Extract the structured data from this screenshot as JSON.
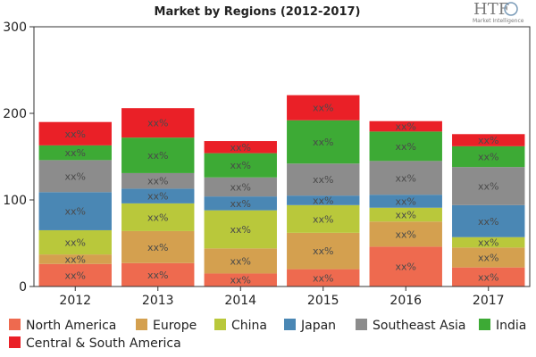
{
  "chart_data": {
    "type": "bar",
    "stacked": true,
    "title": "Market by Regions (2012-2017)",
    "categories": [
      "2012",
      "2013",
      "2014",
      "2015",
      "2016",
      "2017"
    ],
    "ylim": [
      0,
      300
    ],
    "yticks": [
      0,
      100,
      200,
      300
    ],
    "grid": false,
    "legend": "bottom",
    "segment_label": "xx%",
    "series": [
      {
        "name": "North America",
        "color": "#EE6A4F",
        "values": [
          26,
          27,
          15,
          20,
          46,
          22
        ]
      },
      {
        "name": "Europe",
        "color": "#D4A04F",
        "values": [
          11,
          37,
          29,
          42,
          29,
          23
        ]
      },
      {
        "name": "China",
        "color": "#B9C83B",
        "values": [
          28,
          32,
          44,
          32,
          16,
          12
        ]
      },
      {
        "name": "Japan",
        "color": "#4A87B4",
        "values": [
          44,
          17,
          16,
          11,
          15,
          37
        ]
      },
      {
        "name": "Southeast Asia",
        "color": "#8C8C8C",
        "values": [
          37,
          18,
          22,
          37,
          39,
          44
        ]
      },
      {
        "name": "India",
        "color": "#3DAA35",
        "values": [
          17,
          41,
          28,
          50,
          34,
          24
        ]
      },
      {
        "name": "Central & South America",
        "color": "#EA2027",
        "values": [
          27,
          34,
          14,
          29,
          12,
          14
        ]
      }
    ]
  },
  "logo": {
    "text": "HTF",
    "subtitle": "Market Intelligence"
  }
}
